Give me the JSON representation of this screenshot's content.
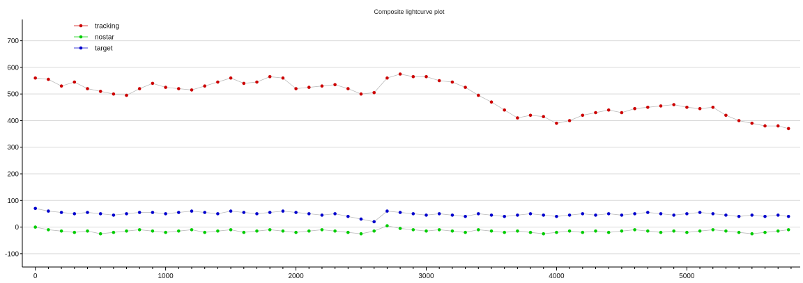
{
  "chart_data": {
    "type": "scatter",
    "title": "Composite lightcurve plot",
    "xlabel": "",
    "ylabel": "",
    "xlim": [
      -100,
      5870
    ],
    "ylim": [
      -150,
      780
    ],
    "grid": true,
    "legend_placement": "top-left",
    "x_ticks": [
      0,
      1000,
      2000,
      3000,
      4000,
      5000
    ],
    "x_minor_step": 100,
    "y_ticks": [
      -100,
      0,
      100,
      200,
      300,
      400,
      500,
      600,
      700
    ],
    "series": [
      {
        "name": "tracking",
        "color": "#cc0000",
        "x": [
          0,
          100,
          200,
          300,
          400,
          500,
          600,
          700,
          800,
          900,
          1000,
          1100,
          1200,
          1300,
          1400,
          1500,
          1600,
          1700,
          1800,
          1900,
          2000,
          2100,
          2200,
          2300,
          2400,
          2500,
          2600,
          2700,
          2800,
          2900,
          3000,
          3100,
          3200,
          3300,
          3400,
          3500,
          3600,
          3700,
          3800,
          3900,
          4000,
          4100,
          4200,
          4300,
          4400,
          4500,
          4600,
          4700,
          4800,
          4900,
          5000,
          5100,
          5200,
          5300,
          5400,
          5500,
          5600,
          5700,
          5780
        ],
        "values": [
          560,
          555,
          530,
          545,
          520,
          510,
          500,
          495,
          520,
          540,
          525,
          520,
          515,
          530,
          545,
          560,
          540,
          545,
          565,
          560,
          520,
          525,
          530,
          535,
          520,
          500,
          505,
          560,
          575,
          565,
          565,
          550,
          545,
          525,
          495,
          470,
          440,
          410,
          420,
          415,
          390,
          400,
          420,
          430,
          440,
          430,
          445,
          450,
          455,
          460,
          450,
          445,
          450,
          420,
          400,
          390,
          380,
          380,
          370
        ]
      },
      {
        "name": "nostar",
        "color": "#00cc00",
        "x": [
          0,
          100,
          200,
          300,
          400,
          500,
          600,
          700,
          800,
          900,
          1000,
          1100,
          1200,
          1300,
          1400,
          1500,
          1600,
          1700,
          1800,
          1900,
          2000,
          2100,
          2200,
          2300,
          2400,
          2500,
          2600,
          2700,
          2800,
          2900,
          3000,
          3100,
          3200,
          3300,
          3400,
          3500,
          3600,
          3700,
          3800,
          3900,
          4000,
          4100,
          4200,
          4300,
          4400,
          4500,
          4600,
          4700,
          4800,
          4900,
          5000,
          5100,
          5200,
          5300,
          5400,
          5500,
          5600,
          5700,
          5780
        ],
        "values": [
          0,
          -10,
          -15,
          -20,
          -15,
          -25,
          -20,
          -15,
          -10,
          -15,
          -20,
          -15,
          -10,
          -20,
          -15,
          -10,
          -20,
          -15,
          -10,
          -15,
          -20,
          -15,
          -10,
          -15,
          -20,
          -25,
          -15,
          5,
          -5,
          -10,
          -15,
          -10,
          -15,
          -20,
          -10,
          -15,
          -20,
          -15,
          -20,
          -25,
          -20,
          -15,
          -20,
          -15,
          -20,
          -15,
          -10,
          -15,
          -20,
          -15,
          -20,
          -15,
          -10,
          -15,
          -20,
          -25,
          -20,
          -15,
          -10
        ]
      },
      {
        "name": "target",
        "color": "#0000cc",
        "x": [
          0,
          100,
          200,
          300,
          400,
          500,
          600,
          700,
          800,
          900,
          1000,
          1100,
          1200,
          1300,
          1400,
          1500,
          1600,
          1700,
          1800,
          1900,
          2000,
          2100,
          2200,
          2300,
          2400,
          2500,
          2600,
          2700,
          2800,
          2900,
          3000,
          3100,
          3200,
          3300,
          3400,
          3500,
          3600,
          3700,
          3800,
          3900,
          4000,
          4100,
          4200,
          4300,
          4400,
          4500,
          4600,
          4700,
          4800,
          4900,
          5000,
          5100,
          5200,
          5300,
          5400,
          5500,
          5600,
          5700,
          5780
        ],
        "values": [
          70,
          60,
          55,
          50,
          55,
          50,
          45,
          50,
          55,
          55,
          50,
          55,
          60,
          55,
          50,
          60,
          55,
          50,
          55,
          60,
          55,
          50,
          45,
          50,
          40,
          30,
          20,
          60,
          55,
          50,
          45,
          50,
          45,
          40,
          50,
          45,
          40,
          45,
          50,
          45,
          40,
          45,
          50,
          45,
          50,
          45,
          50,
          55,
          50,
          45,
          50,
          55,
          50,
          45,
          40,
          45,
          40,
          45,
          40
        ]
      }
    ]
  }
}
